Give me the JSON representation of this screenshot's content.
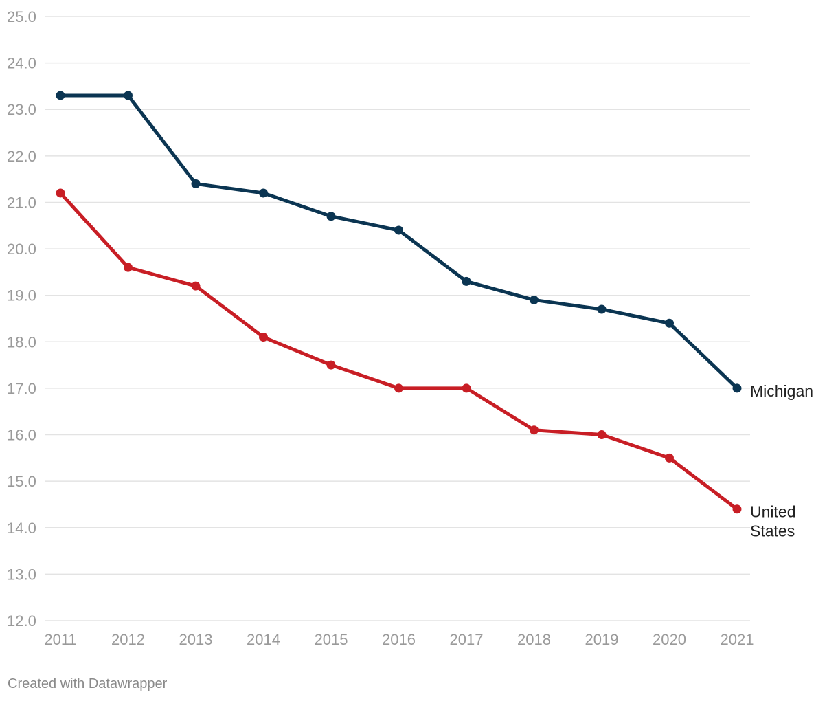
{
  "chart_data": {
    "type": "line",
    "title": "",
    "xlabel": "",
    "ylabel": "",
    "ylim": [
      12.0,
      25.0
    ],
    "y_ticks": [
      "25.0",
      "24.0",
      "23.0",
      "22.0",
      "21.0",
      "20.0",
      "19.0",
      "18.0",
      "17.0",
      "16.0",
      "15.0",
      "14.0",
      "13.0",
      "12.0"
    ],
    "categories": [
      "2011",
      "2012",
      "2013",
      "2014",
      "2015",
      "2016",
      "2017",
      "2018",
      "2019",
      "2020",
      "2021"
    ],
    "series": [
      {
        "name": "Michigan",
        "label_lines": [
          "Michigan"
        ],
        "color": "#0b3552",
        "values": [
          23.3,
          23.3,
          21.4,
          21.2,
          20.7,
          20.4,
          19.3,
          18.9,
          18.7,
          18.4,
          17.0
        ]
      },
      {
        "name": "United States",
        "label_lines": [
          "United",
          "States"
        ],
        "color": "#c81e25",
        "values": [
          21.2,
          19.6,
          19.2,
          18.1,
          17.5,
          17.0,
          17.0,
          16.1,
          16.0,
          15.5,
          14.4
        ]
      }
    ],
    "grid": true,
    "legend": "direct-labels-right"
  },
  "footer": {
    "credit": "Created with Datawrapper"
  }
}
